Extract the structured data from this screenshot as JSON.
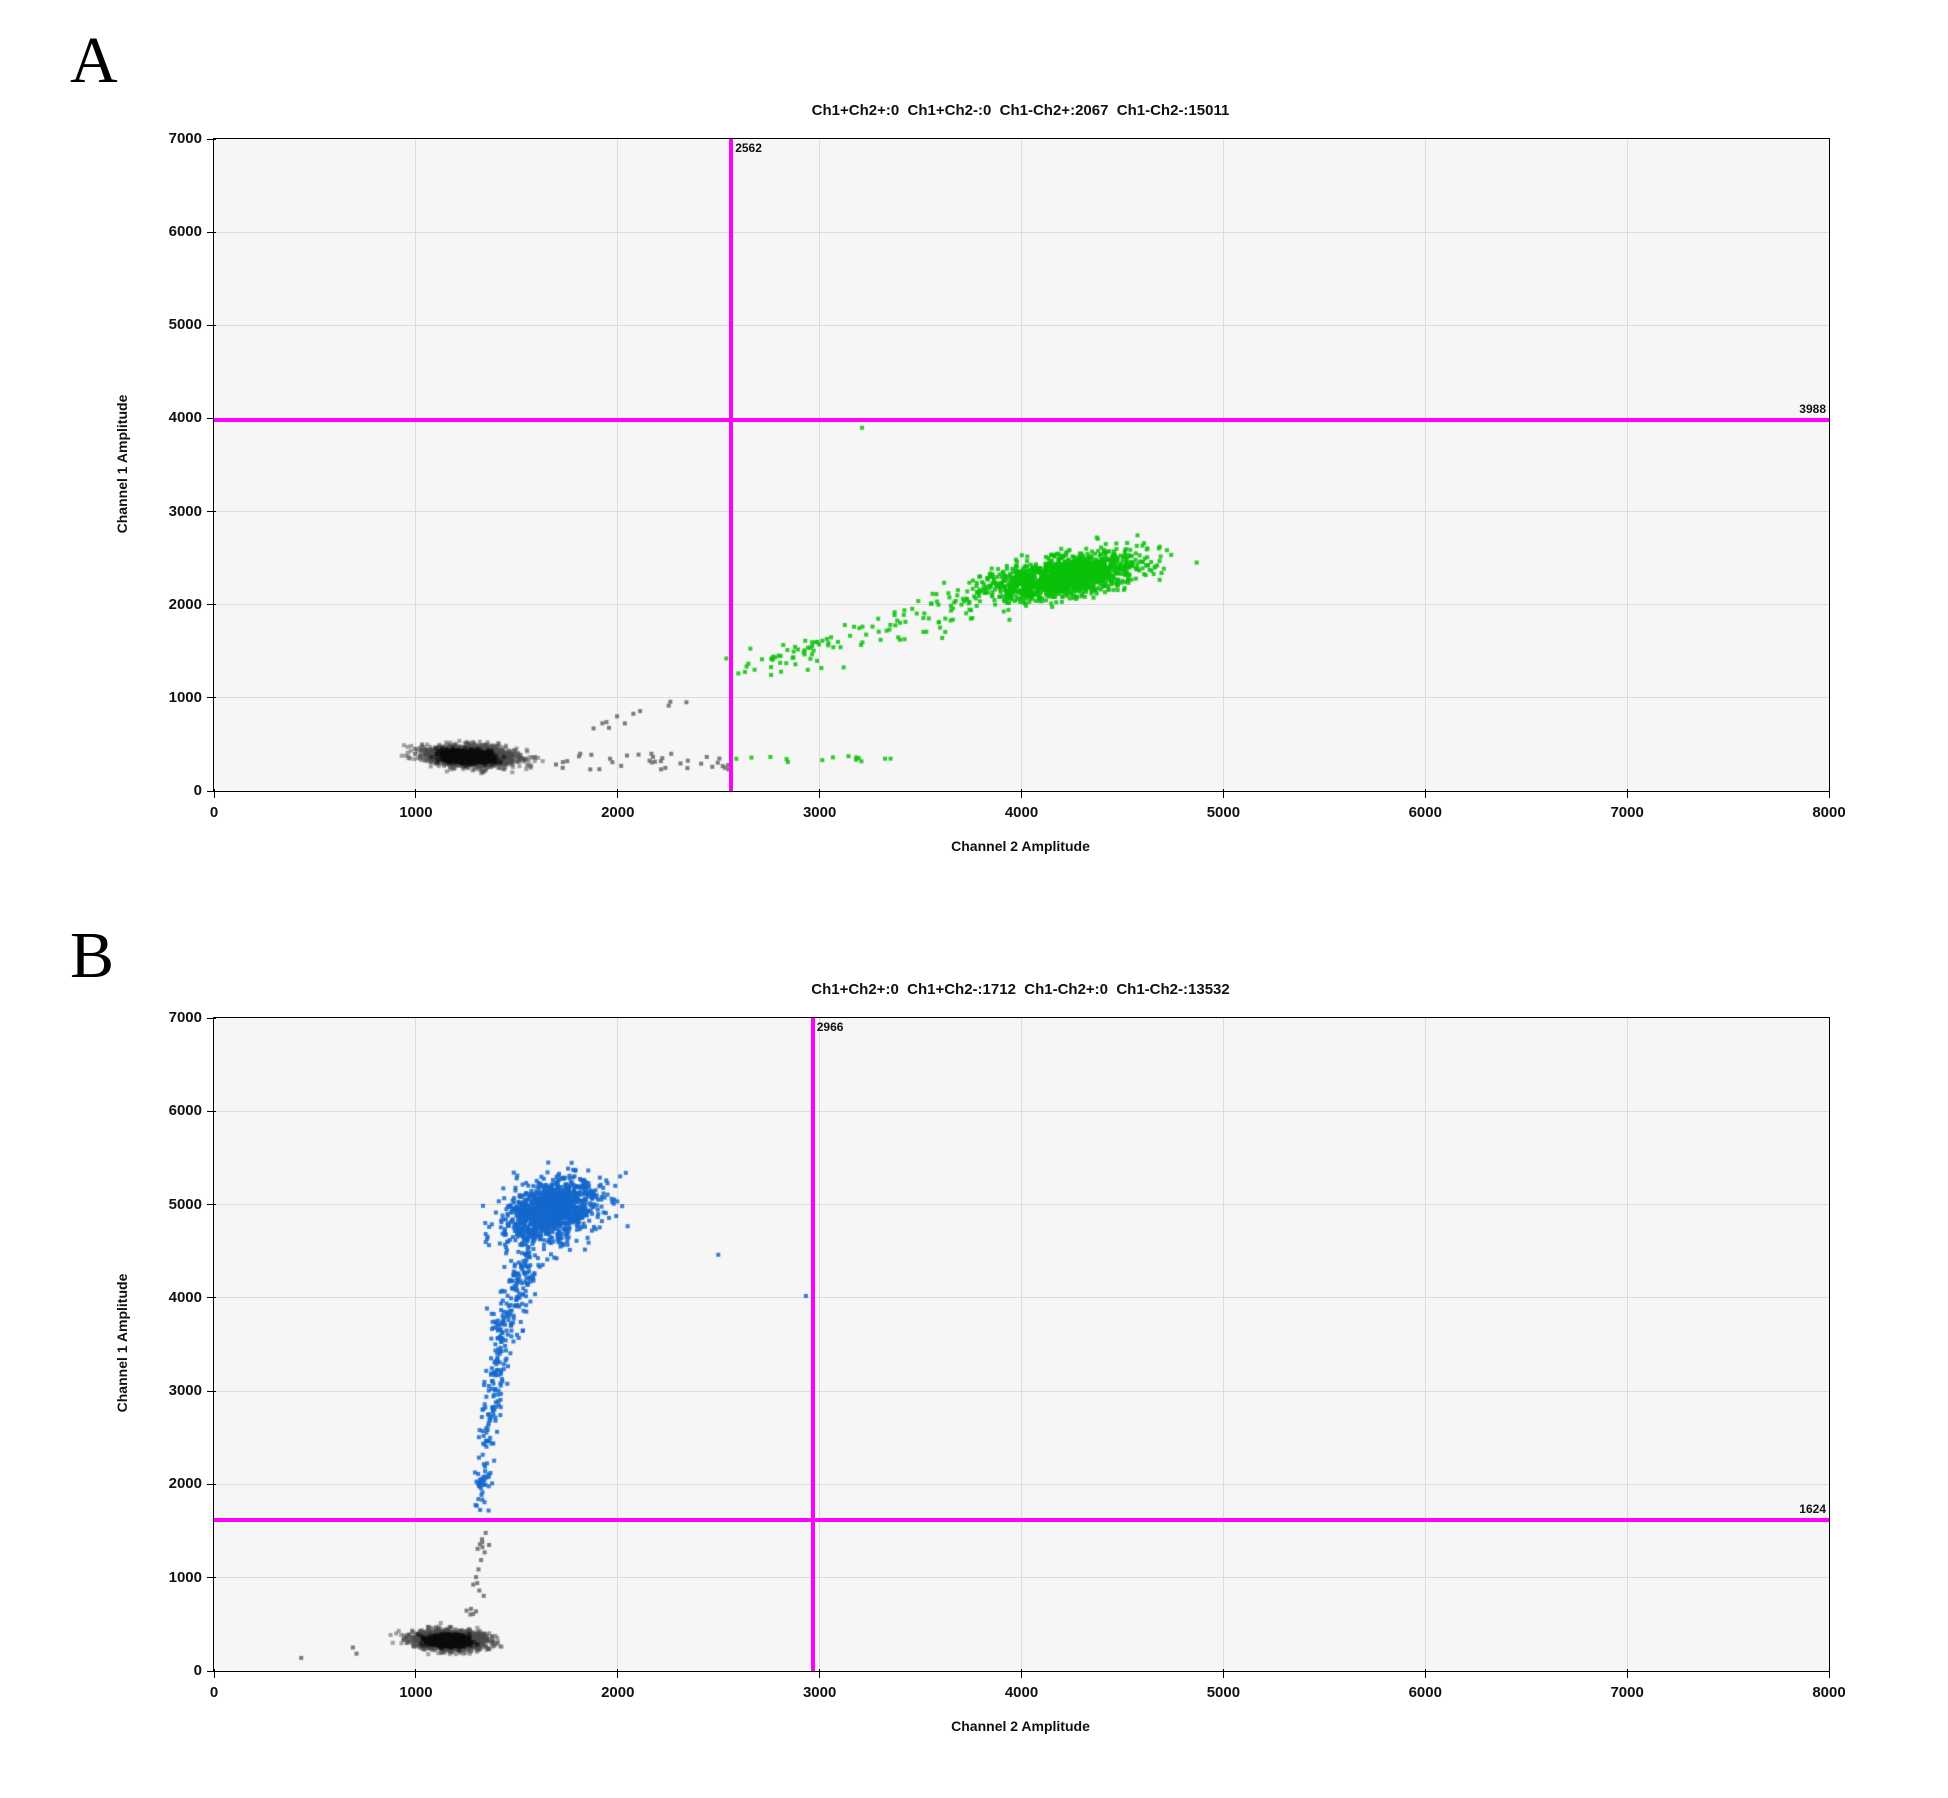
{
  "panels": [
    {
      "label": "A",
      "title": "Ch1+Ch2+:0  Ch1+Ch2-:0  Ch1-Ch2+:2067  Ch1-Ch2-:15011",
      "xlabel": "Channel 2 Amplitude",
      "ylabel": "Channel 1 Amplitude"
    },
    {
      "label": "B",
      "title": "Ch1+Ch2+:0  Ch1+Ch2-:1712  Ch1-Ch2+:0  Ch1-Ch2-:13532",
      "xlabel": "Channel 2 Amplitude",
      "ylabel": "Channel 1 Amplitude"
    }
  ],
  "colors": {
    "threshold": "#ff00ff",
    "positive_green": "rgba(10,193,10,0.85)",
    "positive_blue": "rgba(20,103,204,0.85)",
    "negative_gray": "rgba(110,110,110,0.9)",
    "negative_base": "rgba(75,75,75,0.5)",
    "negative_core": "rgba(12,12,12,0.55)",
    "grid": "#dcdcdc",
    "plot_bg": "#f6f6f6"
  },
  "chart_data": [
    {
      "type": "scatter",
      "title": "Ch1+Ch2+:0  Ch1+Ch2-:0  Ch1-Ch2+:2067  Ch1-Ch2-:15011",
      "xlabel": "Channel 2 Amplitude",
      "ylabel": "Channel 1 Amplitude",
      "xlim": [
        0,
        8000
      ],
      "ylim": [
        0,
        7000
      ],
      "xticks": [
        0,
        1000,
        2000,
        3000,
        4000,
        5000,
        6000,
        7000,
        8000
      ],
      "yticks": [
        0,
        1000,
        2000,
        3000,
        4000,
        5000,
        6000,
        7000
      ],
      "grid": true,
      "thresholds": {
        "x": 2562,
        "x_label": "2562",
        "y": 3988,
        "y_label": "3988"
      },
      "quadrant_counts": {
        "ch1pos_ch2pos": 0,
        "ch1pos_ch2neg": 0,
        "ch1neg_ch2pos": 2067,
        "ch1neg_ch2neg": 15011
      },
      "clusters": [
        {
          "name": "negative-droplets-cloud",
          "colorKey": "negative_base",
          "shape": "gaussian",
          "cx": 1265,
          "cy": 375,
          "sx": 105,
          "sy": 52,
          "rho": -0.18,
          "count": 2600
        },
        {
          "name": "negative-droplets-core",
          "colorKey": "negative_core",
          "shape": "gaussian",
          "cx": 1255,
          "cy": 370,
          "sx": 58,
          "sy": 30,
          "rho": -0.18,
          "count": 1600
        },
        {
          "name": "negative-scatter-band",
          "colorKey": "negative_gray",
          "shape": "band",
          "x0": 1500,
          "x1": 2555,
          "y0": 230,
          "y1": 400,
          "count": 38
        },
        {
          "name": "negative-rain-up",
          "colorKey": "negative_gray",
          "shape": "trail",
          "x0": 1760,
          "y0": 560,
          "x1": 2400,
          "y1": 1075,
          "jx": 90,
          "jy": 70,
          "count": 11
        },
        {
          "name": "negative-strays-near-line",
          "colorKey": "negative_gray",
          "shape": "points",
          "points": [
            [
              2520,
              268
            ],
            [
              2548,
              232
            ]
          ]
        },
        {
          "name": "ch2-positive-droplets",
          "colorKey": "positive_green",
          "shape": "gaussian",
          "cx": 4210,
          "cy": 2300,
          "sx": 185,
          "sy": 125,
          "rho": 0.5,
          "count": 1500
        },
        {
          "name": "ch2-positive-trail",
          "colorKey": "positive_green",
          "shape": "trail",
          "x0": 2640,
          "y0": 1300,
          "x1": 3800,
          "y1": 2080,
          "jx": 150,
          "jy": 150,
          "count": 120
        },
        {
          "name": "ch2-positive-low-band",
          "colorKey": "positive_green",
          "shape": "band",
          "x0": 2580,
          "x1": 3370,
          "y0": 295,
          "y1": 380,
          "count": 14
        },
        {
          "name": "ch2-positive-outlier",
          "colorKey": "positive_green",
          "shape": "points",
          "points": [
            [
              3210,
              3900
            ]
          ]
        }
      ]
    },
    {
      "type": "scatter",
      "title": "Ch1+Ch2+:0  Ch1+Ch2-:1712  Ch1-Ch2+:0  Ch1-Ch2-:13532",
      "xlabel": "Channel 2 Amplitude",
      "ylabel": "Channel 1 Amplitude",
      "xlim": [
        0,
        8000
      ],
      "ylim": [
        0,
        7000
      ],
      "xticks": [
        0,
        1000,
        2000,
        3000,
        4000,
        5000,
        6000,
        7000,
        8000
      ],
      "yticks": [
        0,
        1000,
        2000,
        3000,
        4000,
        5000,
        6000,
        7000
      ],
      "grid": true,
      "thresholds": {
        "x": 2966,
        "x_label": "2966",
        "y": 1624,
        "y_label": "1624"
      },
      "quadrant_counts": {
        "ch1pos_ch2pos": 0,
        "ch1pos_ch2neg": 1712,
        "ch1neg_ch2pos": 0,
        "ch1neg_ch2neg": 13532
      },
      "clusters": [
        {
          "name": "negative-droplets-cloud",
          "colorKey": "negative_base",
          "shape": "gaussian",
          "cx": 1165,
          "cy": 330,
          "sx": 82,
          "sy": 48,
          "rho": -0.12,
          "count": 2400
        },
        {
          "name": "negative-droplets-core",
          "colorKey": "negative_core",
          "shape": "gaussian",
          "cx": 1160,
          "cy": 325,
          "sx": 45,
          "sy": 26,
          "rho": -0.12,
          "count": 1500
        },
        {
          "name": "negative-rain-up",
          "colorKey": "negative_gray",
          "shape": "trail",
          "x0": 1285,
          "y0": 520,
          "x1": 1350,
          "y1": 1580,
          "jx": 30,
          "jy": 60,
          "count": 20
        },
        {
          "name": "negative-outliers",
          "colorKey": "negative_gray",
          "shape": "points",
          "points": [
            [
              432,
              140
            ],
            [
              688,
              252
            ],
            [
              706,
              186
            ]
          ]
        },
        {
          "name": "ch1-positive-droplets",
          "colorKey": "positive_blue",
          "shape": "gaussian",
          "cx": 1668,
          "cy": 4935,
          "sx": 112,
          "sy": 165,
          "rho": 0.3,
          "count": 1250
        },
        {
          "name": "ch1-positive-tail-low",
          "colorKey": "positive_blue",
          "shape": "trail",
          "x0": 1315,
          "y0": 1690,
          "x1": 1360,
          "y1": 2550,
          "jx": 38,
          "jy": 80,
          "count": 55
        },
        {
          "name": "ch1-positive-tail-mid",
          "colorKey": "positive_blue",
          "shape": "trail",
          "x0": 1355,
          "y0": 2550,
          "x1": 1425,
          "y1": 3550,
          "jx": 48,
          "jy": 80,
          "count": 95
        },
        {
          "name": "ch1-positive-tail-high",
          "colorKey": "positive_blue",
          "shape": "trail",
          "x0": 1415,
          "y0": 3550,
          "x1": 1565,
          "y1": 4480,
          "jx": 68,
          "jy": 90,
          "count": 170
        },
        {
          "name": "ch1-positive-outliers",
          "colorKey": "positive_blue",
          "shape": "points",
          "points": [
            [
              2040,
              5340
            ],
            [
              2012,
              5302
            ],
            [
              2498,
              4462
            ],
            [
              2932,
              4020
            ]
          ]
        }
      ]
    }
  ]
}
